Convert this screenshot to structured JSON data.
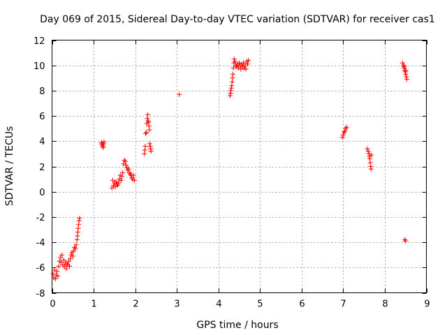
{
  "chart_data": {
    "type": "scatter",
    "title": "Day 069 of 2015, Sidereal Day-to-day VTEC variation (SDTVAR) for receiver cas1",
    "xlabel": "GPS time / hours",
    "ylabel": "SDTVAR / TECUs",
    "xlim": [
      0,
      9
    ],
    "ylim": [
      -8,
      12
    ],
    "xticks": [
      0,
      1,
      2,
      3,
      4,
      5,
      6,
      7,
      8,
      9
    ],
    "yticks": [
      -8,
      -6,
      -4,
      -2,
      0,
      2,
      4,
      6,
      8,
      10,
      12
    ],
    "grid": true,
    "marker": "+",
    "color": "#ff0000",
    "series": [
      {
        "name": "SDTVAR",
        "points": [
          [
            0.02,
            -6.5
          ],
          [
            0.04,
            -6.8
          ],
          [
            0.06,
            -6.2
          ],
          [
            0.08,
            -6.9
          ],
          [
            0.1,
            -6.6
          ],
          [
            0.12,
            -6.3
          ],
          [
            0.14,
            -6.7
          ],
          [
            0.16,
            -5.9
          ],
          [
            0.18,
            -5.5
          ],
          [
            0.2,
            -5.2
          ],
          [
            0.22,
            -5.6
          ],
          [
            0.24,
            -5.0
          ],
          [
            0.26,
            -5.8
          ],
          [
            0.28,
            -5.4
          ],
          [
            0.3,
            -5.9
          ],
          [
            0.32,
            -5.6
          ],
          [
            0.34,
            -6.1
          ],
          [
            0.36,
            -5.7
          ],
          [
            0.38,
            -5.8
          ],
          [
            0.4,
            -5.5
          ],
          [
            0.42,
            -5.9
          ],
          [
            0.44,
            -5.3
          ],
          [
            0.46,
            -5.0
          ],
          [
            0.48,
            -4.8
          ],
          [
            0.5,
            -5.1
          ],
          [
            0.52,
            -4.7
          ],
          [
            0.54,
            -4.4
          ],
          [
            0.56,
            -4.5
          ],
          [
            0.58,
            -4.2
          ],
          [
            0.6,
            -3.8
          ],
          [
            0.61,
            -3.5
          ],
          [
            0.62,
            -3.2
          ],
          [
            0.63,
            -2.9
          ],
          [
            0.64,
            -2.6
          ],
          [
            0.65,
            -2.3
          ],
          [
            0.66,
            -2.1
          ],
          [
            1.19,
            3.9
          ],
          [
            1.2,
            3.8
          ],
          [
            1.21,
            3.7
          ],
          [
            1.22,
            3.6
          ],
          [
            1.23,
            3.5
          ],
          [
            1.24,
            3.8
          ],
          [
            1.25,
            3.95
          ],
          [
            1.44,
            0.3
          ],
          [
            1.46,
            0.9
          ],
          [
            1.48,
            0.5
          ],
          [
            1.5,
            0.7
          ],
          [
            1.52,
            0.4
          ],
          [
            1.54,
            0.8
          ],
          [
            1.56,
            0.6
          ],
          [
            1.58,
            0.5
          ],
          [
            1.6,
            0.7
          ],
          [
            1.62,
            1.0
          ],
          [
            1.64,
            1.3
          ],
          [
            1.66,
            0.9
          ],
          [
            1.68,
            1.2
          ],
          [
            1.7,
            1.5
          ],
          [
            1.72,
            2.2
          ],
          [
            1.74,
            2.5
          ],
          [
            1.76,
            2.4
          ],
          [
            1.78,
            2.1
          ],
          [
            1.8,
            1.9
          ],
          [
            1.82,
            1.7
          ],
          [
            1.84,
            1.8
          ],
          [
            1.86,
            1.5
          ],
          [
            1.88,
            1.4
          ],
          [
            1.9,
            1.3
          ],
          [
            1.92,
            1.1
          ],
          [
            1.94,
            1.0
          ],
          [
            1.96,
            1.3
          ],
          [
            1.98,
            0.9
          ],
          [
            2.22,
            3.0
          ],
          [
            2.23,
            3.3
          ],
          [
            2.24,
            3.6
          ],
          [
            2.25,
            4.6
          ],
          [
            2.27,
            4.7
          ],
          [
            2.28,
            5.4
          ],
          [
            2.29,
            5.8
          ],
          [
            2.3,
            6.1
          ],
          [
            2.31,
            5.6
          ],
          [
            2.32,
            5.5
          ],
          [
            2.33,
            5.2
          ],
          [
            2.34,
            4.9
          ],
          [
            2.35,
            3.8
          ],
          [
            2.36,
            3.6
          ],
          [
            2.37,
            3.4
          ],
          [
            2.38,
            3.2
          ],
          [
            3.06,
            7.7
          ],
          [
            4.28,
            7.6
          ],
          [
            4.29,
            7.8
          ],
          [
            4.3,
            8.0
          ],
          [
            4.31,
            8.2
          ],
          [
            4.32,
            8.4
          ],
          [
            4.33,
            8.7
          ],
          [
            4.34,
            9.0
          ],
          [
            4.35,
            9.3
          ],
          [
            4.36,
            9.8
          ],
          [
            4.37,
            10.2
          ],
          [
            4.38,
            10.5
          ],
          [
            4.4,
            10.3
          ],
          [
            4.42,
            10.0
          ],
          [
            4.44,
            9.9
          ],
          [
            4.46,
            10.1
          ],
          [
            4.48,
            9.8
          ],
          [
            4.5,
            10.2
          ],
          [
            4.52,
            10.0
          ],
          [
            4.54,
            9.7
          ],
          [
            4.56,
            10.1
          ],
          [
            4.58,
            9.9
          ],
          [
            4.6,
            10.2
          ],
          [
            4.62,
            9.8
          ],
          [
            4.64,
            10.0
          ],
          [
            4.66,
            9.7
          ],
          [
            4.68,
            10.3
          ],
          [
            4.7,
            10.1
          ],
          [
            4.72,
            10.4
          ],
          [
            6.98,
            4.3
          ],
          [
            7.0,
            4.5
          ],
          [
            7.02,
            4.7
          ],
          [
            7.04,
            4.8
          ],
          [
            7.06,
            5.0
          ],
          [
            7.08,
            5.1
          ],
          [
            7.58,
            3.4
          ],
          [
            7.6,
            3.2
          ],
          [
            7.62,
            3.0
          ],
          [
            7.63,
            2.8
          ],
          [
            7.64,
            2.6
          ],
          [
            7.65,
            2.3
          ],
          [
            7.66,
            2.0
          ],
          [
            7.67,
            1.8
          ],
          [
            7.68,
            2.9
          ],
          [
            8.43,
            10.2
          ],
          [
            8.45,
            10.0
          ],
          [
            8.46,
            9.8
          ],
          [
            8.47,
            9.9
          ],
          [
            8.48,
            9.6
          ],
          [
            8.49,
            9.5
          ],
          [
            8.5,
            9.3
          ],
          [
            8.51,
            9.6
          ],
          [
            8.52,
            9.1
          ],
          [
            8.53,
            8.9
          ],
          [
            8.48,
            -3.8
          ],
          [
            8.5,
            -3.9
          ]
        ]
      }
    ]
  }
}
